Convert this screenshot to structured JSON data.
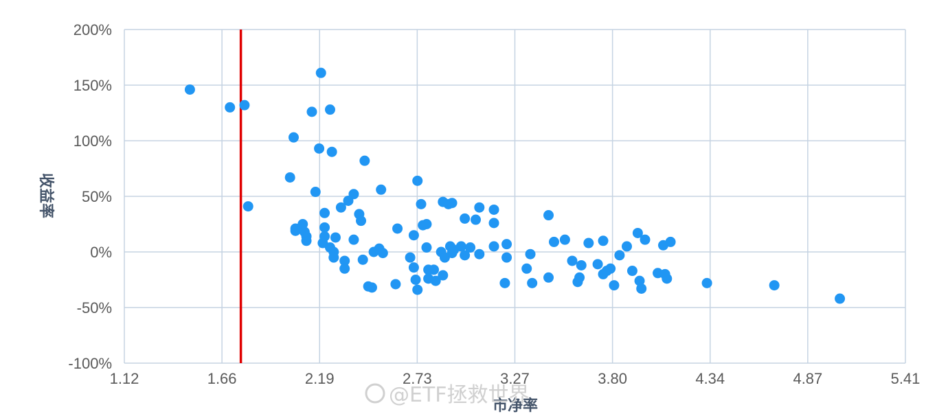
{
  "chart_data": {
    "type": "scatter",
    "xlabel": "市净率",
    "ylabel": "收益率",
    "x_ticks": [
      "1.12",
      "1.66",
      "2.19",
      "2.73",
      "3.27",
      "3.80",
      "4.34",
      "4.87",
      "5.41"
    ],
    "y_ticks": [
      "200%",
      "150%",
      "100%",
      "50%",
      "0%",
      "-50%",
      "-100%"
    ],
    "xlim": [
      1.12,
      5.41
    ],
    "ylim": [
      -100,
      200
    ],
    "grid": true,
    "point_color": "#2196f3",
    "reference_line": {
      "x": 1.76,
      "color": "#e00000"
    },
    "points": [
      [
        1.48,
        146
      ],
      [
        1.7,
        130
      ],
      [
        1.78,
        132
      ],
      [
        1.8,
        41
      ],
      [
        2.05,
        103
      ],
      [
        2.03,
        67
      ],
      [
        2.15,
        126
      ],
      [
        2.17,
        54
      ],
      [
        2.19,
        93
      ],
      [
        2.2,
        161
      ],
      [
        2.25,
        128
      ],
      [
        2.26,
        90
      ],
      [
        2.44,
        82
      ],
      [
        2.53,
        56
      ],
      [
        2.73,
        64
      ],
      [
        2.38,
        52
      ],
      [
        2.31,
        40
      ],
      [
        2.35,
        46
      ],
      [
        2.22,
        35
      ],
      [
        2.06,
        21
      ],
      [
        2.06,
        19
      ],
      [
        2.1,
        25
      ],
      [
        2.12,
        14
      ],
      [
        2.12,
        10
      ],
      [
        2.11,
        18
      ],
      [
        2.22,
        22
      ],
      [
        2.22,
        14
      ],
      [
        2.21,
        8
      ],
      [
        2.28,
        13
      ],
      [
        2.25,
        4
      ],
      [
        2.27,
        0
      ],
      [
        2.27,
        -5
      ],
      [
        2.33,
        -8
      ],
      [
        2.33,
        -15
      ],
      [
        2.38,
        11
      ],
      [
        2.41,
        34
      ],
      [
        2.42,
        28
      ],
      [
        2.43,
        -7
      ],
      [
        2.46,
        -31
      ],
      [
        2.48,
        -32
      ],
      [
        2.49,
        0
      ],
      [
        2.52,
        3
      ],
      [
        2.54,
        -1
      ],
      [
        2.61,
        -29
      ],
      [
        2.62,
        21
      ],
      [
        2.69,
        -5
      ],
      [
        2.71,
        15
      ],
      [
        2.71,
        -14
      ],
      [
        2.72,
        -25
      ],
      [
        2.73,
        -34
      ],
      [
        2.75,
        43
      ],
      [
        2.76,
        24
      ],
      [
        2.78,
        25
      ],
      [
        2.78,
        4
      ],
      [
        2.79,
        -16
      ],
      [
        2.79,
        -24
      ],
      [
        2.82,
        -16
      ],
      [
        2.83,
        -26
      ],
      [
        2.86,
        0
      ],
      [
        2.87,
        -21
      ],
      [
        2.87,
        45
      ],
      [
        2.88,
        -5
      ],
      [
        2.9,
        43
      ],
      [
        2.91,
        5
      ],
      [
        2.92,
        -1
      ],
      [
        2.92,
        44
      ],
      [
        2.93,
        2
      ],
      [
        2.97,
        5
      ],
      [
        2.99,
        -3
      ],
      [
        2.99,
        30
      ],
      [
        3.02,
        4
      ],
      [
        3.05,
        29
      ],
      [
        3.07,
        40
      ],
      [
        3.07,
        -2
      ],
      [
        3.15,
        26
      ],
      [
        3.15,
        38
      ],
      [
        3.15,
        5
      ],
      [
        3.21,
        -28
      ],
      [
        3.22,
        7
      ],
      [
        3.22,
        -5
      ],
      [
        3.33,
        -15
      ],
      [
        3.35,
        -2
      ],
      [
        3.36,
        -28
      ],
      [
        3.45,
        -23
      ],
      [
        3.45,
        33
      ],
      [
        3.48,
        9
      ],
      [
        3.54,
        11
      ],
      [
        3.58,
        -8
      ],
      [
        3.61,
        -27
      ],
      [
        3.62,
        -23
      ],
      [
        3.63,
        -12
      ],
      [
        3.67,
        8
      ],
      [
        3.72,
        -11
      ],
      [
        3.75,
        10
      ],
      [
        3.75,
        -20
      ],
      [
        3.77,
        -17
      ],
      [
        3.79,
        -15
      ],
      [
        3.81,
        -30
      ],
      [
        3.84,
        -3
      ],
      [
        3.88,
        5
      ],
      [
        3.91,
        -17
      ],
      [
        3.94,
        17
      ],
      [
        3.95,
        -26
      ],
      [
        3.96,
        -33
      ],
      [
        3.98,
        11
      ],
      [
        4.05,
        -19
      ],
      [
        4.08,
        6
      ],
      [
        4.09,
        -20
      ],
      [
        4.1,
        -24
      ],
      [
        4.12,
        9
      ],
      [
        4.32,
        -28
      ],
      [
        4.69,
        -30
      ],
      [
        5.05,
        -42
      ]
    ]
  },
  "watermark": "@ETF拯救世界"
}
